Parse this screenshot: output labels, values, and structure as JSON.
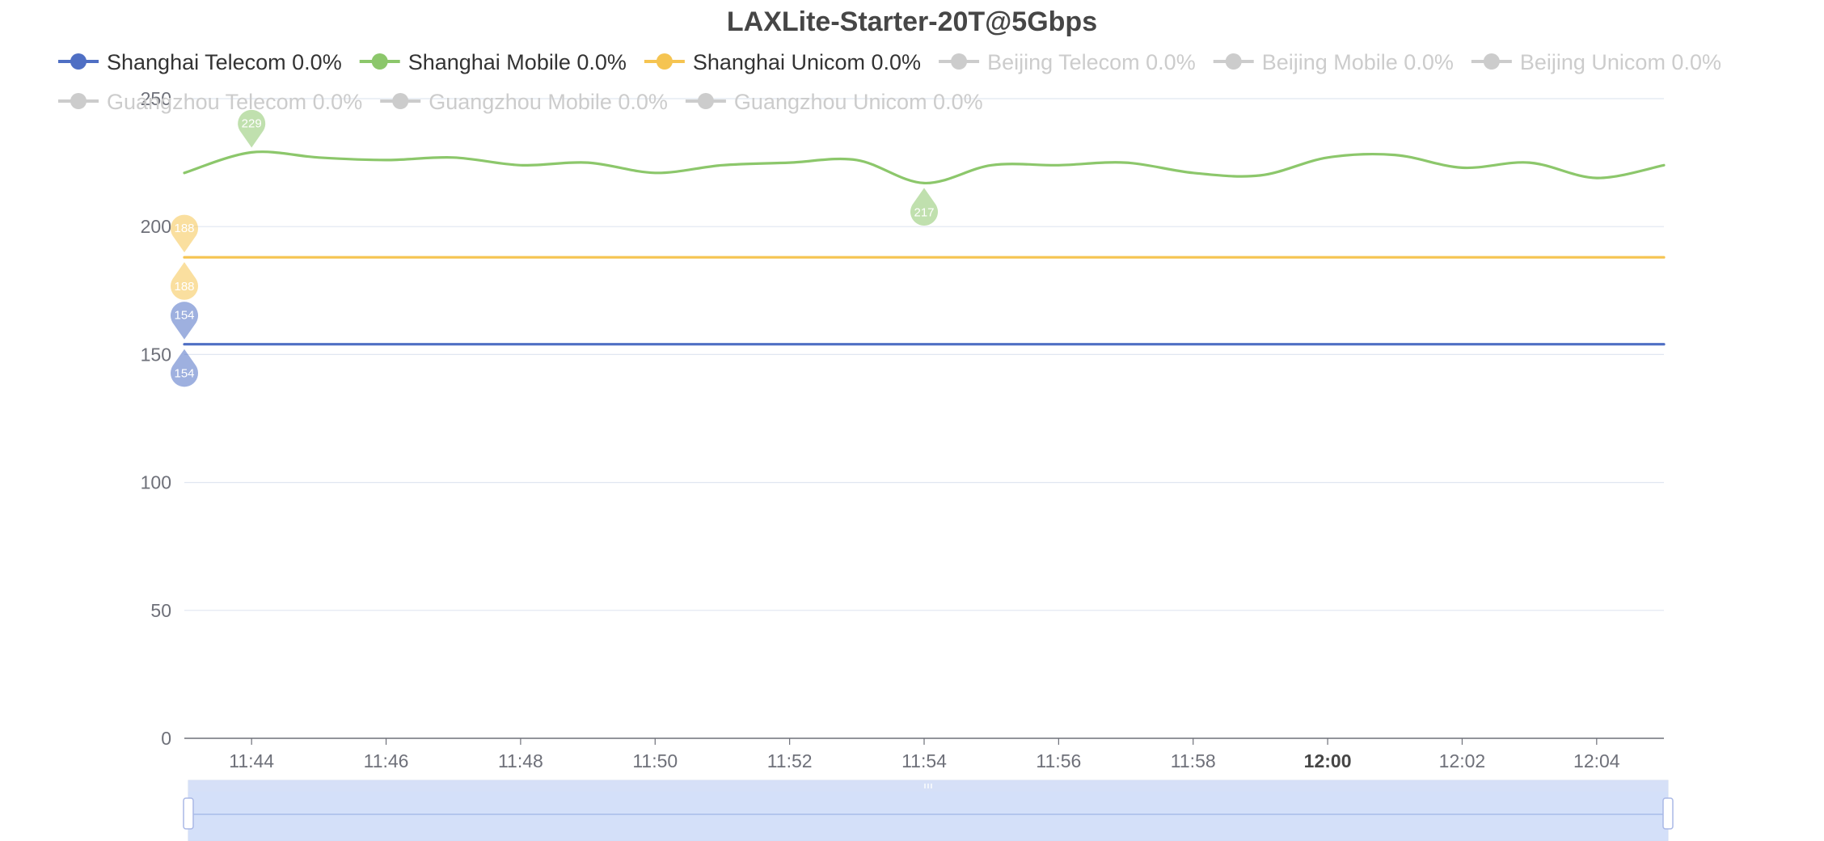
{
  "chart_data": {
    "type": "line",
    "title": "LAXLite-Starter-20T@5Gbps",
    "xlabel": "",
    "ylabel": "",
    "ylim": [
      0,
      250
    ],
    "yticks": [
      0,
      50,
      100,
      150,
      200,
      250
    ],
    "grid": true,
    "legend_placement": "top",
    "x_start": "11:43",
    "x_end": "12:05",
    "x_ticks": [
      {
        "time": "11:44",
        "label": "11:44",
        "bold": false
      },
      {
        "time": "11:46",
        "label": "11:46",
        "bold": false
      },
      {
        "time": "11:48",
        "label": "11:48",
        "bold": false
      },
      {
        "time": "11:50",
        "label": "11:50",
        "bold": false
      },
      {
        "time": "11:52",
        "label": "11:52",
        "bold": false
      },
      {
        "time": "11:54",
        "label": "11:54",
        "bold": false
      },
      {
        "time": "11:56",
        "label": "11:56",
        "bold": false
      },
      {
        "time": "11:58",
        "label": "11:58",
        "bold": false
      },
      {
        "time": "12:00",
        "label": "12:00",
        "bold": true
      },
      {
        "time": "12:02",
        "label": "12:02",
        "bold": false
      },
      {
        "time": "12:04",
        "label": "12:04",
        "bold": false
      }
    ],
    "legend": [
      {
        "label": "Shanghai Telecom 0.0%",
        "color": "#4f6fc4",
        "active": true
      },
      {
        "label": "Shanghai Mobile 0.0%",
        "color": "#8cc76b",
        "active": true
      },
      {
        "label": "Shanghai Unicom 0.0%",
        "color": "#f5c451",
        "active": true
      },
      {
        "label": "Beijing Telecom 0.0%",
        "color": "#cccccc",
        "active": false
      },
      {
        "label": "Beijing Mobile 0.0%",
        "color": "#cccccc",
        "active": false
      },
      {
        "label": "Beijing Unicom 0.0%",
        "color": "#cccccc",
        "active": false
      },
      {
        "label": "Guangzhou Telecom 0.0%",
        "color": "#cccccc",
        "active": false
      },
      {
        "label": "Guangzhou Mobile 0.0%",
        "color": "#cccccc",
        "active": false
      },
      {
        "label": "Guangzhou Unicom 0.0%",
        "color": "#cccccc",
        "active": false
      }
    ],
    "series": [
      {
        "name": "Shanghai Telecom",
        "color": "#4f6fc4",
        "x": [
          "11:43",
          "11:46",
          "11:50",
          "11:54",
          "11:58",
          "12:02",
          "12:05"
        ],
        "values": [
          154,
          154,
          154,
          154,
          154,
          154,
          154
        ],
        "markers": [
          {
            "kind": "max",
            "time": "11:43",
            "value": 154,
            "label": "154"
          },
          {
            "kind": "min",
            "time": "11:43",
            "value": 154,
            "label": "154"
          }
        ]
      },
      {
        "name": "Shanghai Mobile",
        "color": "#8cc76b",
        "x": [
          "11:43",
          "11:44",
          "11:45",
          "11:46",
          "11:47",
          "11:48",
          "11:49",
          "11:50",
          "11:51",
          "11:52",
          "11:53",
          "11:54",
          "11:55",
          "11:56",
          "11:57",
          "11:58",
          "11:59",
          "12:00",
          "12:01",
          "12:02",
          "12:03",
          "12:04",
          "12:05"
        ],
        "values": [
          221,
          229,
          227,
          226,
          227,
          224,
          225,
          221,
          224,
          225,
          226,
          217,
          224,
          224,
          225,
          221,
          220,
          227,
          228,
          223,
          225,
          219,
          224
        ],
        "markers": [
          {
            "kind": "max",
            "time": "11:44",
            "value": 229,
            "label": "229"
          },
          {
            "kind": "min",
            "time": "11:54",
            "value": 217,
            "label": "217"
          }
        ]
      },
      {
        "name": "Shanghai Unicom",
        "color": "#f5c451",
        "x": [
          "11:43",
          "11:46",
          "11:50",
          "11:54",
          "11:58",
          "12:02",
          "12:05"
        ],
        "values": [
          188,
          188,
          188,
          188,
          188,
          188,
          188
        ],
        "markers": [
          {
            "kind": "max",
            "time": "11:43",
            "value": 188,
            "label": "188"
          },
          {
            "kind": "min",
            "time": "11:43",
            "value": 188,
            "label": "188"
          }
        ]
      }
    ],
    "data_zoom": {
      "start_percent": 0,
      "end_percent": 100
    }
  }
}
